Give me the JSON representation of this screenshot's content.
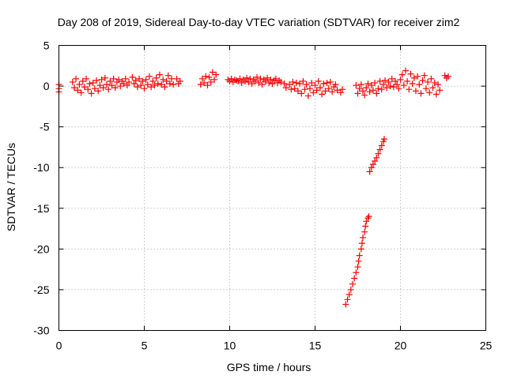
{
  "chart_data": {
    "type": "scatter",
    "title": "Day 208 of 2019, Sidereal Day-to-day VTEC variation (SDTVAR) for receiver zim2",
    "xlabel": "GPS time / hours",
    "ylabel": "SDTVAR / TECUs",
    "xlim": [
      0,
      25
    ],
    "ylim": [
      -30,
      5
    ],
    "x_ticks": [
      0,
      5,
      10,
      15,
      20,
      25
    ],
    "y_ticks": [
      5,
      0,
      -5,
      -10,
      -15,
      -20,
      -25,
      -30
    ],
    "grid": true,
    "marker": "plus",
    "colors": {
      "series": "#ff0000",
      "grid": "#a0a0a0",
      "frame": "#000000"
    },
    "series": [
      {
        "points": [
          [
            0.0,
            0.2
          ],
          [
            0.0,
            -0.3
          ],
          [
            0.0,
            -0.7
          ],
          [
            0.8,
            0.5
          ],
          [
            0.9,
            -0.2
          ],
          [
            1.0,
            0.9
          ],
          [
            1.1,
            -0.5
          ],
          [
            1.2,
            0.2
          ],
          [
            1.3,
            -0.8
          ],
          [
            1.4,
            0.6
          ],
          [
            1.5,
            -0.1
          ],
          [
            1.6,
            0.9
          ],
          [
            1.7,
            -0.4
          ],
          [
            1.8,
            0.3
          ],
          [
            1.9,
            -0.9
          ],
          [
            2.0,
            0.4
          ],
          [
            2.1,
            -0.3
          ],
          [
            2.2,
            0.7
          ],
          [
            2.3,
            -0.6
          ],
          [
            2.4,
            0.1
          ],
          [
            2.5,
            0.8
          ],
          [
            2.6,
            -0.2
          ],
          [
            2.7,
            1.0
          ],
          [
            2.8,
            0.2
          ],
          [
            2.9,
            -0.4
          ],
          [
            3.0,
            0.6
          ],
          [
            3.1,
            0.1
          ],
          [
            3.2,
            0.9
          ],
          [
            3.3,
            -0.2
          ],
          [
            3.4,
            0.5
          ],
          [
            3.5,
            0.8
          ],
          [
            3.6,
            0.0
          ],
          [
            3.7,
            0.6
          ],
          [
            3.8,
            0.3
          ],
          [
            3.9,
            0.9
          ],
          [
            4.0,
            0.1
          ],
          [
            4.1,
            0.5
          ],
          [
            4.3,
            1.1
          ],
          [
            4.4,
            0.3
          ],
          [
            4.5,
            0.7
          ],
          [
            4.6,
            -0.1
          ],
          [
            4.7,
            0.9
          ],
          [
            4.8,
            0.1
          ],
          [
            4.9,
            0.6
          ],
          [
            5.0,
            -0.3
          ],
          [
            5.1,
            0.8
          ],
          [
            5.2,
            0.2
          ],
          [
            5.3,
            1.2
          ],
          [
            5.4,
            -0.1
          ],
          [
            5.5,
            0.6
          ],
          [
            5.6,
            0.1
          ],
          [
            5.7,
            1.0
          ],
          [
            5.8,
            0.3
          ],
          [
            5.9,
            1.4
          ],
          [
            6.0,
            0.2
          ],
          [
            6.1,
            0.8
          ],
          [
            6.2,
            -0.1
          ],
          [
            6.3,
            0.6
          ],
          [
            6.4,
            1.3
          ],
          [
            6.5,
            0.3
          ],
          [
            6.6,
            0.9
          ],
          [
            6.7,
            0.2
          ],
          [
            6.9,
            0.9
          ],
          [
            7.0,
            0.3
          ],
          [
            7.1,
            0.6
          ],
          [
            8.3,
            0.2
          ],
          [
            8.4,
            0.9
          ],
          [
            8.5,
            0.4
          ],
          [
            8.6,
            1.2
          ],
          [
            8.7,
            0.1
          ],
          [
            8.8,
            1.1
          ],
          [
            8.9,
            0.5
          ],
          [
            9.0,
            1.7
          ],
          [
            9.1,
            0.8
          ],
          [
            9.2,
            1.4
          ],
          [
            9.9,
            0.8
          ],
          [
            10.0,
            0.6
          ],
          [
            10.1,
            0.9
          ],
          [
            10.2,
            0.5
          ],
          [
            10.3,
            0.8
          ],
          [
            10.4,
            0.7
          ],
          [
            10.5,
            0.6
          ],
          [
            10.6,
            0.9
          ],
          [
            10.7,
            0.4
          ],
          [
            10.8,
            0.8
          ],
          [
            10.9,
            0.6
          ],
          [
            11.0,
            1.0
          ],
          [
            11.1,
            0.5
          ],
          [
            11.2,
            0.9
          ],
          [
            11.3,
            0.3
          ],
          [
            11.4,
            0.8
          ],
          [
            11.5,
            0.6
          ],
          [
            11.6,
            1.1
          ],
          [
            11.7,
            0.4
          ],
          [
            11.8,
            0.9
          ],
          [
            11.9,
            0.2
          ],
          [
            12.0,
            0.8
          ],
          [
            12.1,
            0.6
          ],
          [
            12.2,
            1.0
          ],
          [
            12.3,
            0.4
          ],
          [
            12.4,
            0.8
          ],
          [
            12.5,
            0.3
          ],
          [
            12.6,
            0.7
          ],
          [
            12.7,
            0.9
          ],
          [
            12.8,
            0.4
          ],
          [
            12.9,
            0.7
          ],
          [
            13.0,
            0.5
          ],
          [
            13.2,
            0.3
          ],
          [
            13.3,
            -0.2
          ],
          [
            13.5,
            0.2
          ],
          [
            13.6,
            -0.4
          ],
          [
            13.7,
            0.5
          ],
          [
            13.8,
            -0.3
          ],
          [
            13.9,
            0.4
          ],
          [
            14.0,
            -0.6
          ],
          [
            14.1,
            0.3
          ],
          [
            14.2,
            -0.9
          ],
          [
            14.3,
            0.6
          ],
          [
            14.4,
            -0.4
          ],
          [
            14.5,
            0.2
          ],
          [
            14.6,
            -1.2
          ],
          [
            14.7,
            -0.3
          ],
          [
            14.8,
            0.4
          ],
          [
            14.9,
            -0.8
          ],
          [
            15.0,
            0.1
          ],
          [
            15.1,
            -0.5
          ],
          [
            15.2,
            0.6
          ],
          [
            15.3,
            -0.2
          ],
          [
            15.4,
            -1.0
          ],
          [
            15.5,
            0.3
          ],
          [
            15.6,
            -0.6
          ],
          [
            15.7,
            0.4
          ],
          [
            15.8,
            -0.3
          ],
          [
            15.9,
            0.5
          ],
          [
            16.0,
            -0.7
          ],
          [
            16.1,
            -0.1
          ],
          [
            16.2,
            0.2
          ],
          [
            16.3,
            -0.5
          ],
          [
            16.5,
            -0.8
          ],
          [
            16.6,
            -0.4
          ],
          [
            17.4,
            0.1
          ],
          [
            17.5,
            -0.9
          ],
          [
            17.6,
            -0.3
          ],
          [
            17.7,
            0.2
          ],
          [
            17.8,
            -0.6
          ],
          [
            17.9,
            -1.1
          ],
          [
            18.0,
            -0.2
          ],
          [
            18.1,
            0.3
          ],
          [
            18.2,
            -0.7
          ],
          [
            18.3,
            0.1
          ],
          [
            18.4,
            -0.5
          ],
          [
            18.5,
            0.4
          ],
          [
            18.6,
            -0.9
          ],
          [
            18.7,
            -0.3
          ],
          [
            18.8,
            0.6
          ],
          [
            18.9,
            -0.4
          ],
          [
            19.0,
            0.2
          ],
          [
            19.1,
            0.7
          ],
          [
            19.2,
            -0.2
          ],
          [
            19.3,
            0.5
          ],
          [
            19.4,
            0.0
          ],
          [
            19.5,
            0.9
          ],
          [
            19.6,
            -0.1
          ],
          [
            19.7,
            0.6
          ],
          [
            19.8,
            0.2
          ],
          [
            19.9,
            -0.3
          ],
          [
            20.0,
            0.8
          ],
          [
            20.1,
            1.4
          ],
          [
            20.2,
            0.1
          ],
          [
            20.3,
            1.9
          ],
          [
            20.4,
            0.6
          ],
          [
            20.5,
            -0.4
          ],
          [
            20.6,
            1.5
          ],
          [
            20.7,
            0.3
          ],
          [
            20.8,
            1.0
          ],
          [
            20.9,
            -0.6
          ],
          [
            21.0,
            1.2
          ],
          [
            21.1,
            0.2
          ],
          [
            21.2,
            -0.9
          ],
          [
            21.3,
            0.7
          ],
          [
            21.4,
            1.3
          ],
          [
            21.5,
            -0.3
          ],
          [
            21.6,
            0.5
          ],
          [
            21.7,
            -0.8
          ],
          [
            21.8,
            0.9
          ],
          [
            21.9,
            -0.2
          ],
          [
            22.0,
            0.4
          ],
          [
            22.1,
            -1.0
          ],
          [
            22.2,
            0.2
          ],
          [
            22.3,
            -0.5
          ],
          [
            22.6,
            1.3
          ],
          [
            22.7,
            1.0
          ],
          [
            22.8,
            1.2
          ],
          [
            18.2,
            -10.5
          ],
          [
            18.3,
            -10.0
          ],
          [
            18.4,
            -9.6
          ],
          [
            18.5,
            -9.2
          ],
          [
            18.6,
            -8.8
          ],
          [
            18.7,
            -8.3
          ],
          [
            18.8,
            -7.8
          ],
          [
            18.9,
            -7.3
          ],
          [
            19.0,
            -6.8
          ],
          [
            19.05,
            -6.5
          ],
          [
            16.8,
            -26.8
          ],
          [
            16.9,
            -26.2
          ],
          [
            17.0,
            -25.6
          ],
          [
            17.1,
            -25.0
          ],
          [
            17.2,
            -24.3
          ],
          [
            17.3,
            -23.6
          ],
          [
            17.4,
            -22.9
          ],
          [
            17.5,
            -22.2
          ],
          [
            17.55,
            -21.5
          ],
          [
            17.6,
            -20.8
          ],
          [
            17.7,
            -20.0
          ],
          [
            17.75,
            -19.3
          ],
          [
            17.8,
            -18.6
          ],
          [
            17.9,
            -17.9
          ],
          [
            17.95,
            -17.2
          ],
          [
            18.0,
            -16.6
          ],
          [
            18.1,
            -16.2
          ],
          [
            18.15,
            -16.0
          ]
        ]
      }
    ]
  }
}
